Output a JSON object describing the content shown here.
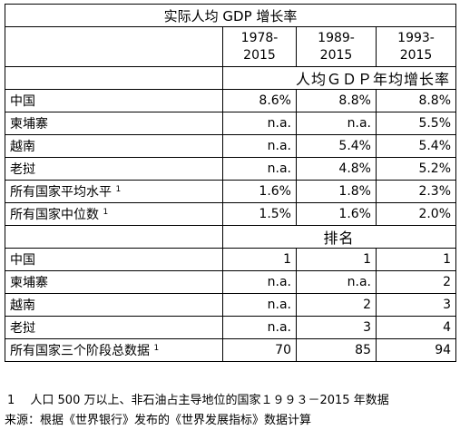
{
  "table": {
    "title": "实际人均 GDP 增长率",
    "periods": [
      "1978-\n2015",
      "1989-\n2015",
      "1993-\n2015"
    ],
    "periods_lines": [
      [
        "1978-",
        "2015"
      ],
      [
        "1989-",
        "2015"
      ],
      [
        "1993-",
        "2015"
      ]
    ],
    "growth_header": "人均ＧＤＰ年均增长率",
    "growth_rows": [
      {
        "label": "中国",
        "sup": "",
        "values": [
          "8.6%",
          "8.8%",
          "8.8%"
        ]
      },
      {
        "label": "柬埔寨",
        "sup": "",
        "values": [
          "n.a.",
          "n.a.",
          "5.5%"
        ]
      },
      {
        "label": "越南",
        "sup": "",
        "values": [
          "n.a.",
          "5.4%",
          "5.4%"
        ]
      },
      {
        "label": "老挝",
        "sup": "",
        "values": [
          "n.a.",
          "4.8%",
          "5.2%"
        ]
      },
      {
        "label": "所有国家平均水平",
        "sup": "1",
        "values": [
          "1.6%",
          "1.8%",
          "2.3%"
        ]
      },
      {
        "label": "所有国家中位数",
        "sup": "1",
        "values": [
          "1.5%",
          "1.6%",
          "2.0%"
        ]
      }
    ],
    "rank_header": "排名",
    "rank_rows": [
      {
        "label": "中国",
        "sup": "",
        "values": [
          "1",
          "1",
          "1"
        ]
      },
      {
        "label": "柬埔寨",
        "sup": "",
        "values": [
          "n.a.",
          "n.a.",
          "2"
        ]
      },
      {
        "label": "越南",
        "sup": "",
        "values": [
          "n.a.",
          "2",
          "3"
        ]
      },
      {
        "label": "老挝",
        "sup": "",
        "values": [
          "n.a.",
          "3",
          "4"
        ]
      },
      {
        "label": "所有国家三个阶段总数据",
        "sup": "1",
        "values": [
          "70",
          "85",
          "94"
        ]
      }
    ]
  },
  "footnote": "1　 人口 500 万以上、非石油占主导地位的国家１９９３－2015 年数据",
  "source": "来源：根据《世界银行》发布的《世界发展指标》数据计算"
}
